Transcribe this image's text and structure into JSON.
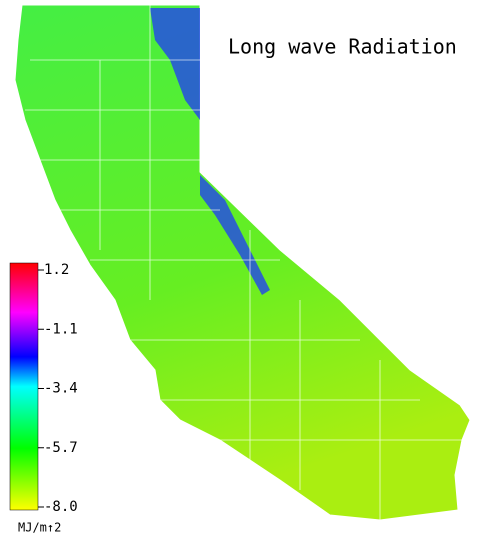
{
  "title": "Long wave Radiation",
  "colorbar": {
    "ticks": [
      1.2,
      -1.1,
      -3.4,
      -5.7,
      {
        "value": -8,
        "label": "-8.0"
      }
    ],
    "unit": "MJ/m↑2"
  }
}
